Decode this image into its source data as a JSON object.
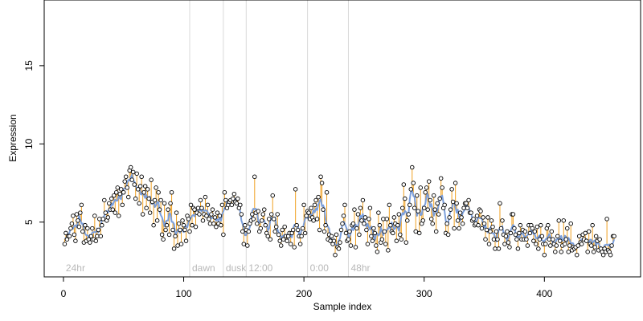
{
  "chart_data": {
    "type": "scatter",
    "title": "",
    "xlabel": "Sample index",
    "ylabel": "Expression",
    "xlim": [
      -16,
      480
    ],
    "ylim": [
      1.5,
      19.2
    ],
    "x_ticks": [
      0,
      100,
      200,
      300,
      400
    ],
    "y_ticks": [
      5,
      10,
      15
    ],
    "grid": false,
    "legend": "none",
    "colors": {
      "points_fill": "#ffffff",
      "points_stroke": "#000000",
      "smooth_line": "#7b9fdc",
      "residual_lines": "#f0a020",
      "phase_lines": "#d9d9d9",
      "phase_label": "#b8b8b8"
    },
    "phase_markers": [
      {
        "x": 105,
        "label": "dawn"
      },
      {
        "x": 133,
        "label": "dusk"
      },
      {
        "x": 152,
        "label": "12:00"
      },
      {
        "x": 203,
        "label": "0:00"
      },
      {
        "x": 237,
        "label": "48hr"
      }
    ],
    "start_label": "24hr",
    "series": [
      {
        "values": [
          3.6,
          4.3,
          3.9,
          4.1,
          4.1,
          4.6,
          4.9,
          5.4,
          4.2,
          3.8,
          5.5,
          5.1,
          4.7,
          5.6,
          6.1,
          4.4,
          3.7,
          4.8,
          3.8,
          4.6,
          3.9,
          3.7,
          4.1,
          4.6,
          3.9,
          5.4,
          3.8,
          4.1,
          4.5,
          5.2,
          4.1,
          4.8,
          5.2,
          6.4,
          5.6,
          5.1,
          5.3,
          6.2,
          5.8,
          6.5,
          5.8,
          6.7,
          5.6,
          6.9,
          7.2,
          5.4,
          6.8,
          7.1,
          6.1,
          6.9,
          7.6,
          7.9,
          7.2,
          6.6,
          8.3,
          8.5,
          7.7,
          8.2,
          7.4,
          6.5,
          8.1,
          7.1,
          6.2,
          7.3,
          7.9,
          5.5,
          6.9,
          7.3,
          5.9,
          7.1,
          6.5,
          5.6,
          7.7,
          6.3,
          4.8,
          6.4,
          7.2,
          5.1,
          6.9,
          5.8,
          6.4,
          4.2,
          3.9,
          6.2,
          4.5,
          4.8,
          5.8,
          4.2,
          6.2,
          6.9,
          4.5,
          3.3,
          4.1,
          5.6,
          3.5,
          4.9,
          4.5,
          3.6,
          5.1,
          4.8,
          4.5,
          3.8,
          5.4,
          5.2,
          4.4,
          6.1,
          4.8,
          5.9,
          5.8,
          4.7,
          5.6,
          5.9,
          5.5,
          6.4,
          5.9,
          5.1,
          5.5,
          6.6,
          5.4,
          6.1,
          5.2,
          4.9,
          5.5,
          5.8,
          4.9,
          5.3,
          4.7,
          5.6,
          4.9,
          5.4,
          4.8,
          6.1,
          4.2,
          6.9,
          6.4,
          5.9,
          6.1,
          6.3,
          6.4,
          6.1,
          6.5,
          6.8,
          6.3,
          6.2,
          6.5,
          5.9,
          6.1,
          5.5,
          4.4,
          3.6,
          4.8,
          4.5,
          3.5,
          4.4,
          4.9,
          5.1,
          5.5,
          5.2,
          7.9,
          5.6,
          4.9,
          5.7,
          4.4,
          4.6,
          5.1,
          5.5,
          5.8,
          4.8,
          4.3,
          4.1,
          5.2,
          3.9,
          5.5,
          6.7,
          5.2,
          4.4,
          4.7,
          5.5,
          4.2,
          3.8,
          3.5,
          4.5,
          3.9,
          4.7,
          4.1,
          3.8,
          4.1,
          4.3,
          3.6,
          4.3,
          4.5,
          3.4,
          7.1,
          4.8,
          4.5,
          4.1,
          3.6,
          4.1,
          4.6,
          6.1,
          4.3,
          5.4,
          5.7,
          5.6,
          5.2,
          5.9,
          5.3,
          5.1,
          6.1,
          6.4,
          5.2,
          6.6,
          4.5,
          7.9,
          7.5,
          5.8,
          4.4,
          4.8,
          6.9,
          3.9,
          4.2,
          3.8,
          4.1,
          3.6,
          3.8,
          2.9,
          4.2,
          3.4,
          3.3,
          3.7,
          4.5,
          4.9,
          5.4,
          6.1,
          4.3,
          3.8,
          3.9,
          4.4,
          3.5,
          4.8,
          4.9,
          5.8,
          3.4,
          4.6,
          5.5,
          4.2,
          5.9,
          5.1,
          6.4,
          4.9,
          5.3,
          4.5,
          3.6,
          5.2,
          5.9,
          4.1,
          3.8,
          4.6,
          4.3,
          3.5,
          3.1,
          5.6,
          4.8,
          3.7,
          3.9,
          5.2,
          4.4,
          3.6,
          5.2,
          3.2,
          6.1,
          4.8,
          4.4,
          4.3,
          5.3,
          4.9,
          3.8,
          4.8,
          5.5,
          4.2,
          3.9,
          5.9,
          7.4,
          6.5,
          3.7,
          5.1,
          5.5,
          6.1,
          7.1,
          8.5,
          7.5,
          5.9,
          4.4,
          6.7,
          5.7,
          4.3,
          7.2,
          4.9,
          5.1,
          5.9,
          6.9,
          7.2,
          5.8,
          7.6,
          6.4,
          5.2,
          4.9,
          6.7,
          5.8,
          4.4,
          6.2,
          5.5,
          6.5,
          7.8,
          7.2,
          5.9,
          6.1,
          4.3,
          4.9,
          4.2,
          5.3,
          5.8,
          7.1,
          6.3,
          4.6,
          7.5,
          6.2,
          5.1,
          4.6,
          5.6,
          5.3,
          4.9,
          5.9,
          6.2,
          6.2,
          5.9,
          6.4,
          5.6,
          5.6,
          5.1,
          5.2,
          4.8,
          4.9,
          5.4,
          4.8,
          5.8,
          5.7,
          4.6,
          5.3,
          4.9,
          3.9,
          4.5,
          5.3,
          3.6,
          4.4,
          5.1,
          4.7,
          3.9,
          3.3,
          4.4,
          3.9,
          3.3,
          6.2,
          4.6,
          5.1,
          4.2,
          3.6,
          4.1,
          4.4,
          3.7,
          3.4,
          4.3,
          5.5,
          5.5,
          4.6,
          4.2,
          3.9,
          3.3,
          4.3,
          4.8,
          3.9,
          4.5,
          3.9,
          4.4,
          3.9,
          3.5,
          4.8,
          4.3,
          4.8,
          4.6,
          3.8,
          4.4,
          3.6,
          4.7,
          3.3,
          3.9,
          4.8,
          4.1,
          3.6,
          2.9,
          3.6,
          4.6,
          4.8,
          3.9,
          3.5,
          4.4,
          3.9,
          3.6,
          3.1,
          3.5,
          4.1,
          5.1,
          3.8,
          3.1,
          3.5,
          5.1,
          3.6,
          3.9,
          4.6,
          3.1,
          3.5,
          4.9,
          3.2,
          3.4,
          3.3,
          3.4,
          2.9,
          3.5,
          4.1,
          3.7,
          3.6,
          4.2,
          3.9,
          4.3,
          3.8,
          3.1,
          4.4,
          3.6,
          3.5,
          4.8,
          3.1,
          3.4,
          4.1,
          3.8,
          3.2,
          3.9,
          3.3,
          3.1,
          2.9,
          3.3,
          3.1,
          5.2,
          3.2,
          3.1,
          2.9,
          3.5,
          4.1,
          4.1
        ]
      }
    ]
  }
}
